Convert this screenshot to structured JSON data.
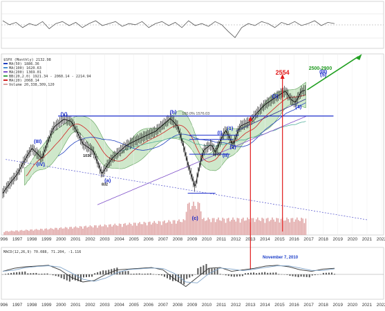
{
  "chart_data": [
    {
      "type": "line",
      "panel": "indicator-top",
      "series": [
        {
          "name": "",
          "values": [
            0.62,
            0.52,
            0.58,
            0.45,
            0.55,
            0.5,
            0.6,
            0.42,
            0.55,
            0.6,
            0.5,
            0.58,
            0.45,
            0.55,
            0.62,
            0.5,
            0.55,
            0.6,
            0.48,
            0.55,
            0.52,
            0.6,
            0.45,
            0.55,
            0.6,
            0.5,
            0.58,
            0.45,
            0.62,
            0.5,
            0.55,
            0.48,
            0.6,
            0.52,
            0.35,
            0.2,
            0.45,
            0.55,
            0.5,
            0.6,
            0.55,
            0.45,
            0.58,
            0.52,
            0.6,
            0.5,
            0.55,
            0.62,
            0.5,
            0.58,
            0.55
          ]
        }
      ]
    },
    {
      "type": "line",
      "panel": "price-monthly",
      "title": "$SPX (Monthly) 2132.98",
      "legend": [
        "MA(50) 1886.36",
        "MA(100) 1620.63",
        "MA(200) 1369.01",
        "BB(20,2.0) 1921.34 - 2060.14 - 2214.94",
        "MA(20) 2068.14",
        "Volume 20,338,309,120"
      ],
      "x_axis_years": [
        "1996",
        "1997",
        "1998",
        "1999",
        "2000",
        "2001",
        "2002",
        "2003",
        "2004",
        "2005",
        "2006",
        "2007",
        "2008",
        "2009",
        "2010",
        "2011",
        "2012",
        "2013",
        "2014",
        "2015",
        "2016",
        "2017",
        "2018",
        "2019",
        "2020",
        "2021",
        "2022"
      ],
      "price_path": [
        {
          "x": 1996.0,
          "y": 640
        },
        {
          "x": 1997.0,
          "y": 800
        },
        {
          "x": 1998.0,
          "y": 1080
        },
        {
          "x": 1998.7,
          "y": 960
        },
        {
          "x": 1999.5,
          "y": 1380
        },
        {
          "x": 2000.2,
          "y": 1520
        },
        {
          "x": 2000.7,
          "y": 1480
        },
        {
          "x": 2001.5,
          "y": 1140
        },
        {
          "x": 2002.2,
          "y": 1050
        },
        {
          "x": 2002.8,
          "y": 800
        },
        {
          "x": 2003.5,
          "y": 960
        },
        {
          "x": 2004.5,
          "y": 1120
        },
        {
          "x": 2005.5,
          "y": 1220
        },
        {
          "x": 2006.5,
          "y": 1320
        },
        {
          "x": 2007.5,
          "y": 1530
        },
        {
          "x": 2008.0,
          "y": 1400
        },
        {
          "x": 2008.7,
          "y": 900
        },
        {
          "x": 2009.2,
          "y": 680
        },
        {
          "x": 2009.8,
          "y": 1060
        },
        {
          "x": 2010.3,
          "y": 1130
        },
        {
          "x": 2010.6,
          "y": 1030
        },
        {
          "x": 2011.3,
          "y": 1340
        },
        {
          "x": 2011.8,
          "y": 1120
        },
        {
          "x": 2012.3,
          "y": 1400
        },
        {
          "x": 2013.0,
          "y": 1480
        },
        {
          "x": 2013.5,
          "y": 1650
        },
        {
          "x": 2014.0,
          "y": 1800
        },
        {
          "x": 2014.7,
          "y": 1950
        },
        {
          "x": 2015.4,
          "y": 2110
        },
        {
          "x": 2015.8,
          "y": 1900
        },
        {
          "x": 2016.1,
          "y": 1850
        },
        {
          "x": 2016.5,
          "y": 2100
        },
        {
          "x": 2016.8,
          "y": 2133
        }
      ],
      "horizontal_levels": [
        {
          "label": "100.0% 1576.03",
          "value": 1576.03
        }
      ],
      "annotations": [
        {
          "text": "(V)",
          "x": 2000.2,
          "y": 1580
        },
        {
          "text": "(III)",
          "x": 1998.4,
          "y": 1150
        },
        {
          "text": "(IV)",
          "x": 1998.6,
          "y": 880
        },
        {
          "text": "(b)",
          "x": 2007.7,
          "y": 1620
        },
        {
          "text": "(a)",
          "x": 2003.2,
          "y": 730
        },
        {
          "text": "(c)",
          "x": 2009.2,
          "y": 470
        },
        {
          "text": "(I)",
          "x": 2010.9,
          "y": 1270
        },
        {
          "text": "(II)",
          "x": 2011.3,
          "y": 980
        },
        {
          "text": "(1)",
          "x": 2011.6,
          "y": 1340
        },
        {
          "text": "(2)",
          "x": 2011.8,
          "y": 1080
        },
        {
          "text": "(3)",
          "x": 2014.7,
          "y": 1950
        },
        {
          "text": "(4)",
          "x": 2016.3,
          "y": 1720
        },
        {
          "text": "(5)",
          "x": 2018.0,
          "y": 2500
        },
        {
          "text": "(III)",
          "x": 2018.0,
          "y": 2600
        },
        {
          "text": "2554",
          "x": 2015.2,
          "y": 2554
        },
        {
          "text": "2500-2900",
          "x": 2017.8,
          "y": 2700
        },
        {
          "text": "1036",
          "x": 2001.8,
          "y": 980
        },
        {
          "text": "832",
          "x": 2003.0,
          "y": 700
        },
        {
          "text": "1022",
          "x": 2010.7,
          "y": 1000
        }
      ]
    },
    {
      "type": "line",
      "panel": "macd",
      "title": "MACD(12,26,9) 70.088, 71.204, -1.116",
      "annotations": [
        {
          "text": "November 7, 2010"
        }
      ],
      "series": [
        {
          "name": "",
          "values": [
            0.2,
            0.4,
            0.5,
            0.55,
            0.6,
            0.3,
            -0.2,
            -0.5,
            -0.4,
            0.0,
            0.3,
            0.35,
            0.4,
            0.45,
            0.3,
            -0.3,
            -0.8,
            -0.2,
            0.4,
            0.45,
            0.2,
            0.3,
            0.4,
            0.55,
            0.6,
            0.5,
            0.3,
            0.2,
            0.35,
            0.4
          ]
        }
      ]
    }
  ]
}
